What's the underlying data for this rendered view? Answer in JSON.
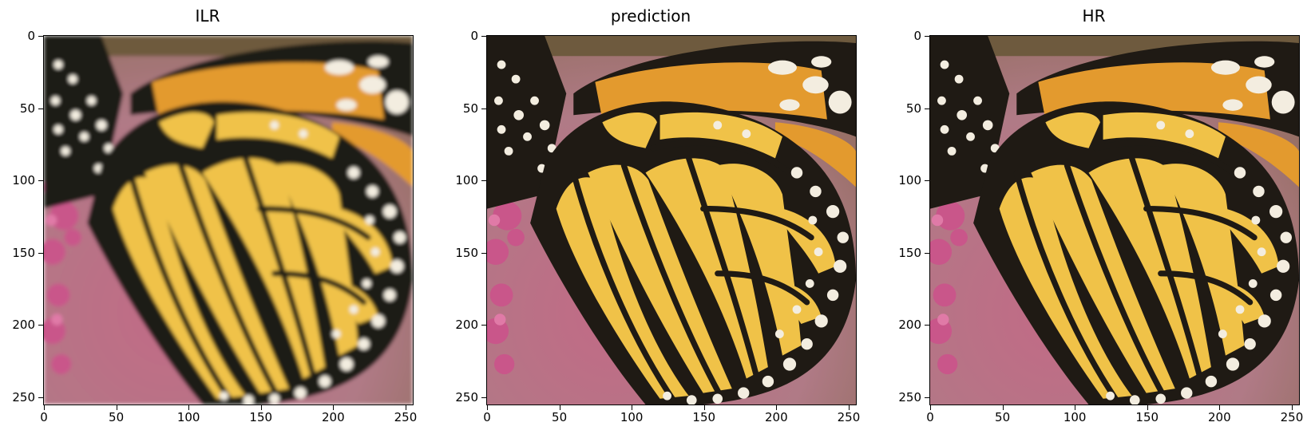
{
  "panels": [
    {
      "title": "ILR",
      "variant": "blurred"
    },
    {
      "title": "prediction",
      "variant": "sharp"
    },
    {
      "title": "HR",
      "variant": "sharp"
    }
  ],
  "axis": {
    "ticks": [
      "0",
      "50",
      "100",
      "150",
      "200",
      "250"
    ],
    "tick_values": [
      0,
      50,
      100,
      150,
      200,
      250
    ],
    "range": [
      0,
      255
    ]
  },
  "image": {
    "subject": "monarch butterfly wing on pink flowers",
    "colors": {
      "wing_orange": "#e8a030",
      "wing_yellow": "#f1c44a",
      "vein_black": "#1f1a14",
      "spot_white": "#f3ede0",
      "flower_pink": "#c65a83",
      "background_pink": "#b9788a"
    }
  }
}
